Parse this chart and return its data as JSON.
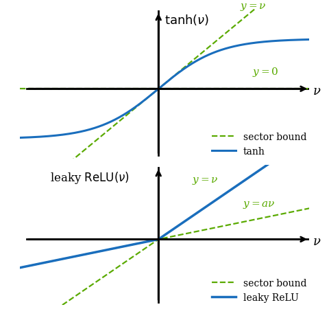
{
  "fig_width": 4.8,
  "fig_height": 4.64,
  "dpi": 100,
  "bg_color": "#ffffff",
  "green_color": "#5aaa00",
  "blue_color": "#1a6ebd",
  "tanh_xlim": [
    -2.3,
    2.5
  ],
  "tanh_ylim": [
    -1.4,
    1.6
  ],
  "relu_xlim": [
    -2.3,
    2.5
  ],
  "relu_ylim": [
    -1.6,
    1.8
  ],
  "leaky_a": 0.3,
  "arrow_lw": 2.0,
  "curve_lw": 2.2,
  "dash_lw": 1.6,
  "fontsize_label": 13,
  "fontsize_annot": 11,
  "fontsize_legend": 10,
  "legend_sector": "sector bound",
  "legend_tanh": "tanh",
  "legend_relu": "leaky ReLU"
}
